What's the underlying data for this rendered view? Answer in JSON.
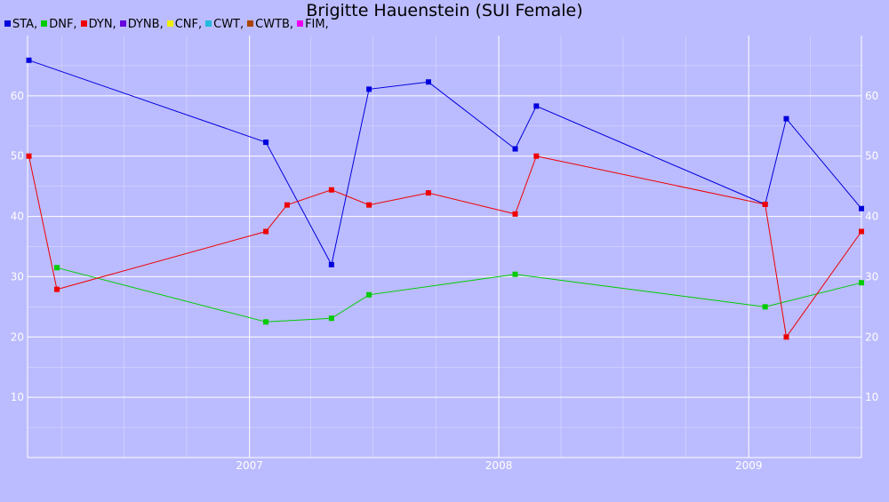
{
  "chart_data": {
    "type": "line",
    "title": "Brigitte Hauenstein (SUI Female)",
    "xlabel": "",
    "ylabel": "",
    "x_range": [
      "2006-02-10",
      "2009-06-15"
    ],
    "ylim": [
      0,
      70
    ],
    "y_ticks": [
      10,
      20,
      30,
      40,
      50,
      60
    ],
    "x_ticks": [
      "2007",
      "2008",
      "2009"
    ],
    "grid": true,
    "legend_position": "top-left",
    "legend": [
      {
        "label": "STA,",
        "color": "#0000dd"
      },
      {
        "label": "DNF,",
        "color": "#00cc00"
      },
      {
        "label": "DYN,",
        "color": "#ee0000"
      },
      {
        "label": "DYNB,",
        "color": "#6600dd"
      },
      {
        "label": "CNF,",
        "color": "#eeee00"
      },
      {
        "label": "CWT,",
        "color": "#22bbdd"
      },
      {
        "label": "CWTB,",
        "color": "#aa4400"
      },
      {
        "label": "FIM,",
        "color": "#ee00ee"
      }
    ],
    "series": [
      {
        "name": "STA",
        "color": "#0000dd",
        "points": [
          [
            "2006-02-12",
            65.9
          ],
          [
            "2007-01-25",
            52.3
          ],
          [
            "2007-05-01",
            32.0
          ],
          [
            "2007-06-25",
            61.1
          ],
          [
            "2007-09-20",
            62.3
          ],
          [
            "2008-01-25",
            51.2
          ],
          [
            "2008-02-25",
            58.3
          ],
          [
            "2009-01-25",
            42.0
          ],
          [
            "2009-02-25",
            56.2
          ],
          [
            "2009-06-15",
            41.3
          ]
        ]
      },
      {
        "name": "DNF",
        "color": "#00cc00",
        "points": [
          [
            "2006-03-25",
            31.5
          ],
          [
            "2007-01-25",
            22.5
          ],
          [
            "2007-05-01",
            23.1
          ],
          [
            "2007-06-25",
            27.0
          ],
          [
            "2008-01-25",
            30.4
          ],
          [
            "2009-01-25",
            25.0
          ],
          [
            "2009-06-15",
            29.0
          ]
        ]
      },
      {
        "name": "DYN",
        "color": "#ee0000",
        "points": [
          [
            "2006-02-12",
            50.0
          ],
          [
            "2006-03-25",
            27.9
          ],
          [
            "2007-01-25",
            37.5
          ],
          [
            "2007-02-25",
            41.9
          ],
          [
            "2007-05-01",
            44.4
          ],
          [
            "2007-06-25",
            41.9
          ],
          [
            "2007-09-20",
            43.9
          ],
          [
            "2008-01-25",
            40.4
          ],
          [
            "2008-02-25",
            50.0
          ],
          [
            "2009-01-25",
            42.0
          ],
          [
            "2009-02-25",
            20.0
          ],
          [
            "2009-06-15",
            37.5
          ]
        ]
      }
    ]
  }
}
